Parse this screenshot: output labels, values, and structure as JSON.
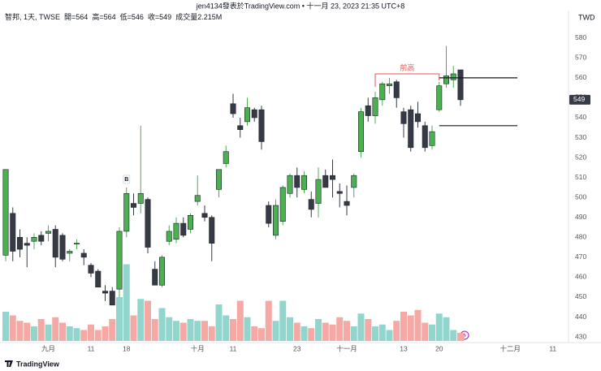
{
  "header": "jen4134發表於TradingView.com • 十一月 23, 2023 21:35 UTC+8",
  "footer": "TradingView",
  "chart_data": {
    "type": "candlestick",
    "legend": {
      "symbol": "智邦, 1天, TWSE",
      "open": "開=",
      "high": "高=",
      "low": "低=",
      "close": "收=",
      "volume": "成交量",
      "volume_value": "2.215M"
    },
    "currency": "TWD",
    "categories": [
      null,
      null,
      null,
      null,
      null,
      null,
      "九月",
      null,
      null,
      null,
      null,
      null,
      "11",
      null,
      null,
      null,
      null,
      "18",
      null,
      null,
      null,
      null,
      null,
      null,
      null,
      null,
      null,
      "十月",
      null,
      null,
      null,
      null,
      "11",
      null,
      null,
      null,
      null,
      null,
      null,
      null,
      null,
      "23",
      null,
      null,
      null,
      null,
      null,
      null,
      "十一月",
      null,
      null,
      null,
      null,
      null,
      null,
      null,
      "13",
      null,
      null,
      null,
      null,
      "20",
      null,
      null,
      null,
      null,
      null,
      null,
      null,
      null,
      null,
      "十二月",
      null,
      null,
      null,
      null,
      null,
      "11",
      null,
      null
    ],
    "open": [
      471,
      492,
      480,
      477,
      478,
      481,
      482,
      484,
      481,
      472,
      477,
      472,
      466,
      463,
      453,
      453,
      454,
      483,
      497,
      497,
      499,
      464,
      456,
      478,
      479,
      487,
      484,
      498,
      492,
      490,
      504,
      517,
      547,
      536,
      538,
      544,
      544,
      496,
      481,
      488,
      502,
      511,
      504,
      499,
      497,
      511,
      511,
      503,
      498,
      505,
      523,
      546,
      541,
      549,
      556,
      558,
      543,
      544,
      542,
      536,
      526,
      544,
      557,
      559,
      564,
      null,
      null,
      null,
      null,
      null,
      null,
      null,
      null,
      null,
      null,
      null,
      null,
      null,
      null,
      null
    ],
    "high": [
      514,
      495,
      484,
      480,
      482,
      483,
      486,
      486,
      482,
      474,
      479,
      474,
      467,
      464,
      456,
      455,
      485,
      505,
      502,
      536,
      500,
      468,
      471,
      486,
      490,
      490,
      492,
      511,
      496,
      491,
      514,
      526,
      552,
      540,
      550,
      545,
      546,
      498,
      499,
      506,
      512,
      515,
      513,
      503,
      515,
      514,
      519,
      507,
      506,
      512,
      545,
      550,
      553,
      558,
      560,
      559,
      545,
      546,
      548,
      538,
      536,
      558,
      576,
      566,
      564,
      null,
      null,
      null,
      null,
      null,
      null,
      null,
      null,
      null,
      null,
      null,
      null,
      null,
      null,
      null
    ],
    "low": [
      468,
      468,
      470,
      465,
      474,
      476,
      478,
      465,
      468,
      468,
      474,
      466,
      460,
      455,
      448,
      446,
      450,
      480,
      491,
      492,
      472,
      456,
      455,
      476,
      477,
      480,
      482,
      496,
      488,
      468,
      500,
      515,
      540,
      530,
      536,
      538,
      524,
      485,
      479,
      486,
      500,
      500,
      502,
      490,
      490,
      505,
      500,
      495,
      491,
      500,
      520,
      538,
      537,
      546,
      552,
      545,
      530,
      523,
      535,
      523,
      524,
      543,
      555,
      555,
      546,
      null,
      null,
      null,
      null,
      null,
      null,
      null,
      null,
      null,
      null,
      null,
      null,
      null,
      null,
      null
    ],
    "close": [
      514,
      473,
      474,
      476,
      480,
      478,
      483,
      470,
      469,
      473,
      477,
      470,
      462,
      455,
      452,
      446,
      483,
      502,
      495,
      502,
      475,
      456,
      470,
      483,
      487,
      481,
      491,
      501,
      490,
      477,
      514,
      523,
      542,
      534,
      545,
      540,
      528,
      487,
      496,
      505,
      511,
      505,
      511,
      494,
      509,
      505,
      509,
      502,
      496,
      511,
      543,
      541,
      550,
      557,
      557,
      550,
      537,
      525,
      538,
      525,
      533,
      556,
      561,
      562,
      549,
      null,
      null,
      null,
      null,
      null,
      null,
      null,
      null,
      null,
      null,
      null,
      null,
      null,
      null,
      null
    ],
    "volume": [
      8,
      7,
      5.5,
      5,
      4,
      6,
      4.5,
      6.5,
      5,
      4,
      3.5,
      3,
      4.5,
      3,
      4,
      6,
      12,
      21,
      7,
      11.5,
      11,
      6,
      9,
      6.5,
      5.5,
      5,
      6,
      5.5,
      5.5,
      4,
      10,
      7,
      6,
      11,
      6.5,
      4,
      3.5,
      11,
      5.5,
      11,
      6.5,
      5,
      4,
      3.5,
      6,
      5,
      4.5,
      6.5,
      5.5,
      4,
      7.5,
      6,
      4,
      4.5,
      3,
      5.5,
      8,
      7,
      8.5,
      5,
      4.5,
      7.5,
      6.5,
      3,
      2.215,
      null,
      null,
      null,
      null,
      null,
      null,
      null,
      null,
      null,
      null,
      null,
      null,
      null,
      null,
      null
    ],
    "up_color": "#4caf50",
    "down_color": "#363a45",
    "volume_up_color": "#92d5cd",
    "volume_down_color": "#f5a9a5",
    "ylim": [
      428,
      597
    ],
    "yticks": [
      430,
      440,
      450,
      460,
      470,
      480,
      490,
      500,
      510,
      520,
      530,
      540,
      550,
      560,
      570,
      580
    ],
    "volume_lim": [
      0,
      30
    ],
    "marker": {
      "text": "B",
      "index": 17
    },
    "annotation": {
      "text": "前高",
      "value": 562,
      "from": 52,
      "to": 61,
      "color": "#e05a5a"
    },
    "levels": [
      {
        "value": 560,
        "from": 61,
        "to": 72
      },
      {
        "value": 536,
        "from": 61,
        "to": 72
      }
    ]
  }
}
